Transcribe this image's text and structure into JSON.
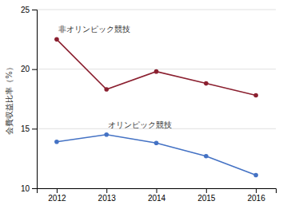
{
  "chart_data": {
    "type": "line",
    "x": [
      2012,
      2013,
      2014,
      2015,
      2016
    ],
    "series": [
      {
        "color": "#8B2030",
        "values": [
          22.5,
          18.3,
          19.8,
          18.8,
          17.8
        ]
      },
      {
        "color": "#4472c4",
        "values": [
          13.9,
          14.5,
          13.8,
          12.7,
          11.1
        ]
      }
    ],
    "annotations": [
      "非オリンピック競技",
      "オリンピック競技"
    ],
    "ylabel": "会費収益比率（%）",
    "xlim": [
      2011.6,
      2016.4
    ],
    "xticks": [
      2012,
      2013,
      2014,
      2015,
      2016
    ],
    "ylim": [
      10,
      25
    ],
    "yticks": [
      10,
      15,
      20,
      25
    ],
    "marker": "circle",
    "grid": true
  }
}
